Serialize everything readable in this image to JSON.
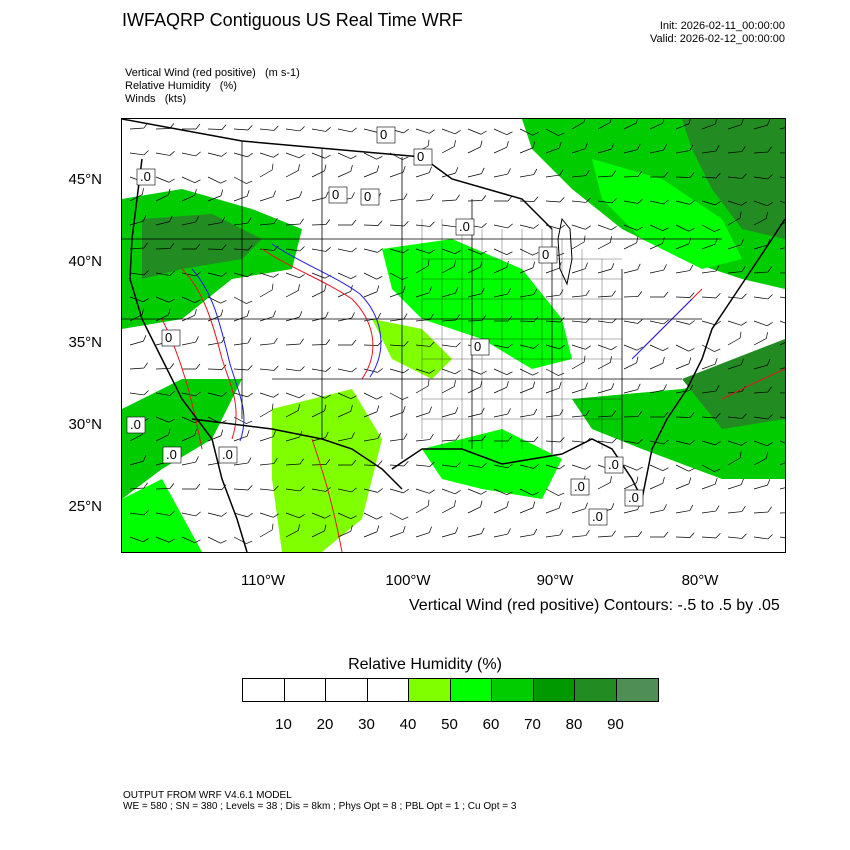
{
  "header": {
    "title": "IWFAQRP Contiguous US Real Time WRF",
    "init": "Init: 2026-02-11_00:00:00",
    "valid": "Valid: 2026-02-12_00:00:00"
  },
  "fields": {
    "f1": "Vertical Wind (red positive)   (m s-1)",
    "f2": "Relative Humidity   (%)",
    "f3": "Winds   (kts)"
  },
  "map": {
    "lat_labels": [
      "45°N",
      "40°N",
      "35°N",
      "30°N",
      "25°N"
    ],
    "lon_labels": [
      "110°W",
      "100°W",
      "90°W",
      "80°W"
    ],
    "contour_labels": [
      ".0",
      "0",
      "0",
      "0",
      "0",
      ".0",
      "0",
      "0",
      "0",
      ".0",
      ".0",
      ".0",
      ".0",
      ".0",
      ".0",
      ".0"
    ],
    "colors": {
      "positive": "#e8141e",
      "negative": "#1e1ee6",
      "land_line": "#000000"
    }
  },
  "contour_note": "Vertical Wind (red positive) Contours: -.5 to .5 by .05",
  "legend": {
    "title": "Relative Humidity  (%)",
    "colors": [
      "#ffffff",
      "#ffffff",
      "#ffffff",
      "#ffffff",
      "#80ff00",
      "#00ff00",
      "#00cc00",
      "#009900",
      "#228b22",
      "#4f8f55"
    ],
    "ticks": [
      "10",
      "20",
      "30",
      "40",
      "50",
      "60",
      "70",
      "80",
      "90"
    ]
  },
  "footer": {
    "line1": "OUTPUT FROM WRF V4.6.1 MODEL",
    "line2": "WE = 580 ; SN = 380 ; Levels = 38 ; Dis = 8km ; Phys Opt = 8 ; PBL Opt = 1 ; Cu Opt = 3"
  }
}
